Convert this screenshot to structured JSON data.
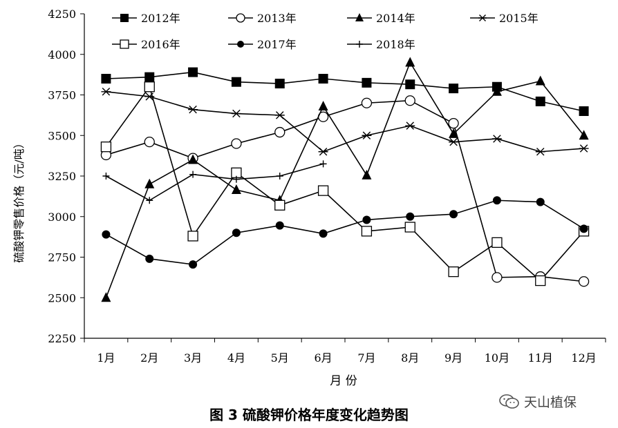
{
  "chart_data": {
    "type": "line",
    "title": "",
    "ylabel": "硫酸钾零售价格（元/吨）",
    "xlabel": "月 份",
    "ylim": [
      2250,
      4250
    ],
    "yticks": [
      2250,
      2500,
      2750,
      3000,
      3250,
      3500,
      3750,
      4000,
      4250
    ],
    "categories": [
      "1月",
      "2月",
      "3月",
      "4月",
      "5月",
      "6月",
      "7月",
      "8月",
      "9月",
      "10月",
      "11月",
      "12月"
    ],
    "legend_position": "top",
    "series": [
      {
        "name": "2012年",
        "marker": "square-filled",
        "values": [
          3850,
          3860,
          3890,
          3830,
          3820,
          3850,
          3825,
          3815,
          3790,
          3800,
          3710,
          3650
        ]
      },
      {
        "name": "2013年",
        "marker": "circle-open",
        "values": [
          3380,
          3460,
          3360,
          3450,
          3520,
          3615,
          3700,
          3715,
          3575,
          2625,
          2630,
          2600
        ]
      },
      {
        "name": "2014年",
        "marker": "triangle-filled",
        "values": [
          2500,
          3200,
          3350,
          3165,
          3100,
          3680,
          3255,
          3950,
          3510,
          3770,
          3835,
          3500
        ]
      },
      {
        "name": "2015年",
        "marker": "star",
        "values": [
          3770,
          3740,
          3660,
          3635,
          3625,
          3400,
          3500,
          3560,
          3460,
          3480,
          3400,
          3420
        ]
      },
      {
        "name": "2016年",
        "marker": "square-open",
        "values": [
          3430,
          3800,
          2880,
          3270,
          3070,
          3160,
          2910,
          2935,
          2660,
          2840,
          2605,
          2910
        ]
      },
      {
        "name": "2017年",
        "marker": "circle-filled",
        "values": [
          2890,
          2740,
          2705,
          2900,
          2945,
          2895,
          2980,
          3000,
          3015,
          3100,
          3090,
          2925
        ]
      },
      {
        "name": "2018年",
        "marker": "plus",
        "values": [
          3250,
          3100,
          3260,
          3230,
          3250,
          3325,
          null,
          null,
          null,
          null,
          null,
          null
        ]
      }
    ]
  },
  "caption": "图 3  硫酸钾价格年度变化趋势图",
  "watermark": "天山植保"
}
